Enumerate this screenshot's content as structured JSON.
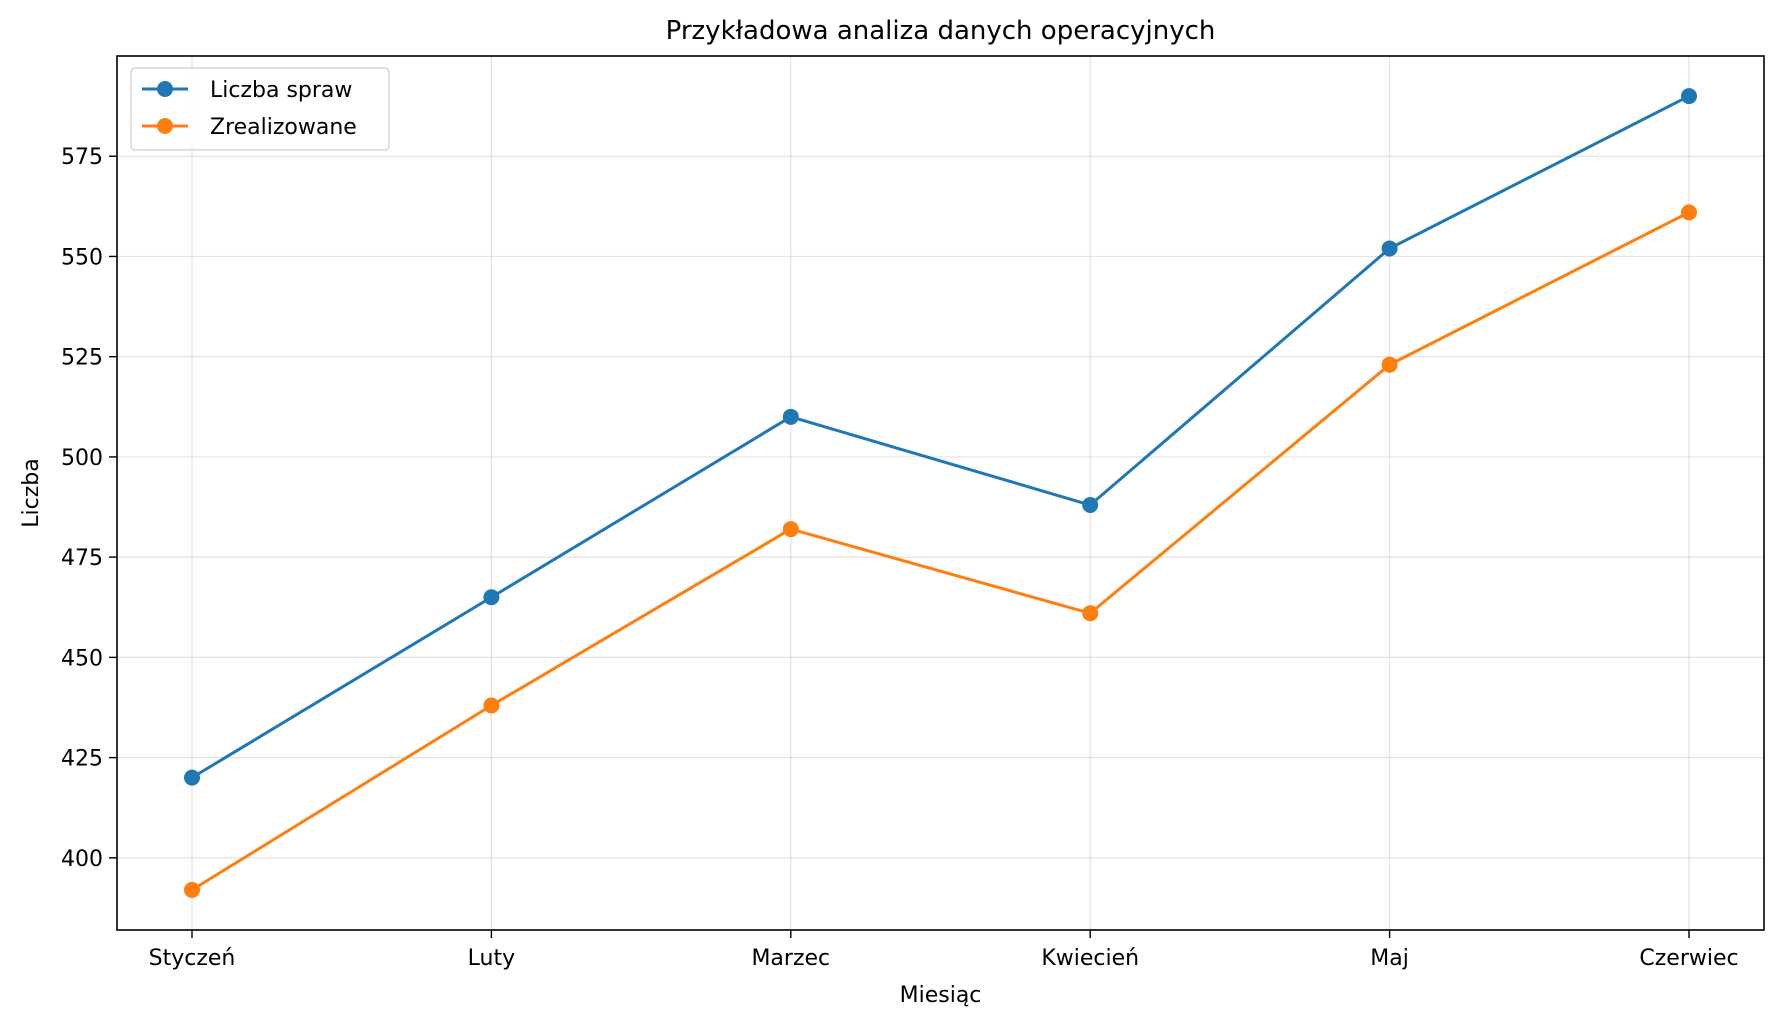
{
  "chart_data": {
    "type": "line",
    "title": "Przykładowa analiza danych operacyjnych",
    "xlabel": "Miesiąc",
    "ylabel": "Liczba",
    "categories": [
      "Styczeń",
      "Luty",
      "Marzec",
      "Kwiecień",
      "Maj",
      "Czerwiec"
    ],
    "series": [
      {
        "name": "Liczba spraw",
        "color": "#1f77b4",
        "values": [
          420,
          465,
          510,
          488,
          552,
          590
        ]
      },
      {
        "name": "Zrealizowane",
        "color": "#ff7f0e",
        "values": [
          392,
          438,
          482,
          461,
          523,
          561
        ]
      }
    ],
    "ylim": [
      382,
      600
    ],
    "yticks": [
      400,
      425,
      450,
      475,
      500,
      525,
      550,
      575
    ],
    "grid": true,
    "legend_position": "top-left"
  }
}
